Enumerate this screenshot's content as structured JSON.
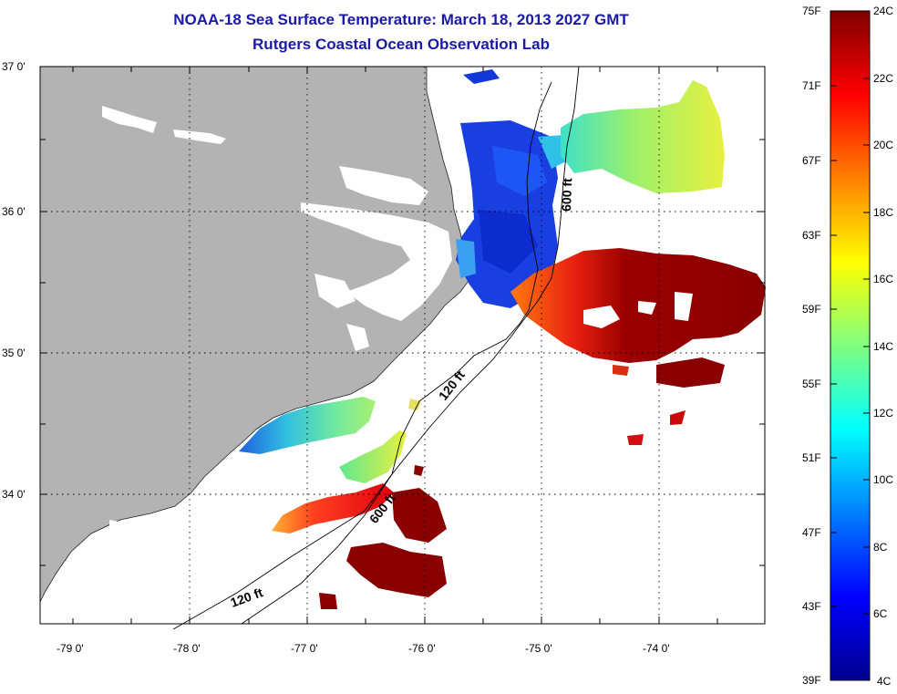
{
  "title_line1": "NOAA-18 Sea Surface Temperature:  March 18, 2013 2027 GMT",
  "title_line2": "Rutgers Coastal Ocean Observation Lab",
  "lat_labels": [
    "37 0'",
    "36 0'",
    "35 0'",
    "34 0'"
  ],
  "lon_labels": [
    "-79 0'",
    "-78 0'",
    "-77 0'",
    "-76 0'",
    "-75 0'",
    "-74 0'"
  ],
  "colorbar": {
    "f_labels": [
      "75F",
      "71F",
      "67F",
      "63F",
      "59F",
      "55F",
      "51F",
      "47F",
      "43F",
      "39F"
    ],
    "c_labels": [
      "24C",
      "22C",
      "20C",
      "18C",
      "16C",
      "14C",
      "12C",
      "10C",
      "8C",
      "6C",
      "4C"
    ]
  },
  "isobath_labels": {
    "north_600": "600 ft",
    "mid_120": "120 ft",
    "south_600": "600 ft",
    "south_120": "120 ft"
  },
  "colors": {
    "land": "#b3b3b3",
    "title": "#1a1aa6",
    "warm": "#8b0000",
    "cold": "#0a2ad0"
  }
}
